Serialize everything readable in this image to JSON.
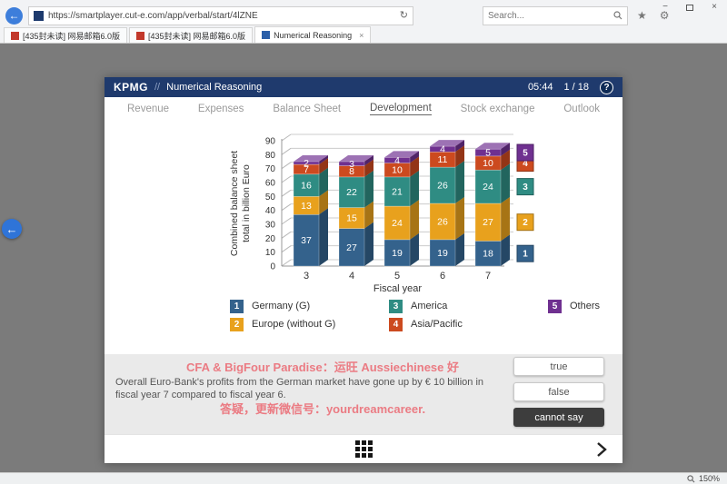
{
  "browser": {
    "url": "https://smartplayer.cut-e.com/app/verbal/start/4lZNE",
    "search_placeholder": "Search...",
    "tabs": [
      {
        "label": "[435封未读] 网易邮箱6.0版",
        "active": false
      },
      {
        "label": "[435封未读] 网易邮箱6.0版",
        "active": false
      },
      {
        "label": "Numerical Reasoning",
        "active": true
      }
    ],
    "status_zoom": "150%"
  },
  "icons": {
    "back": "←",
    "refresh": "↻",
    "star": "★",
    "gear": "⚙",
    "minimize": "−",
    "close": "×",
    "tab_close": "×"
  },
  "app": {
    "brand": "KPMG",
    "divider": "//",
    "title": "Numerical Reasoning",
    "timer": "05:44",
    "progress": "1 / 18",
    "help_label": "?"
  },
  "nav": {
    "items": [
      "Revenue",
      "Expenses",
      "Balance Sheet",
      "Development",
      "Stock exchange",
      "Outlook"
    ],
    "active_index": 3
  },
  "chart_data": {
    "type": "bar",
    "stacked": true,
    "categories": [
      "3",
      "4",
      "5",
      "6",
      "7"
    ],
    "series": [
      {
        "key": "1",
        "name": "Germany (G)",
        "color": "#34628c",
        "values": [
          37,
          27,
          19,
          19,
          18
        ]
      },
      {
        "key": "2",
        "name": "Europe (without G)",
        "color": "#e8a11d",
        "values": [
          13,
          15,
          24,
          26,
          27
        ]
      },
      {
        "key": "3",
        "name": "America",
        "color": "#2f8c83",
        "values": [
          16,
          22,
          21,
          26,
          24
        ]
      },
      {
        "key": "4",
        "name": "Asia/Pacific",
        "color": "#cc4a1f",
        "values": [
          7,
          8,
          10,
          11,
          10
        ]
      },
      {
        "key": "5",
        "name": "Others",
        "color": "#6f3090",
        "values": [
          2,
          3,
          4,
          4,
          5
        ]
      }
    ],
    "xlabel": "Fiscal year",
    "ylabel": "Combined balance sheet\ntotal in billion Euro",
    "ylim": [
      0,
      90
    ],
    "ytick_step": 10,
    "grid": true,
    "legend_position": "bottom"
  },
  "question": {
    "text": "Overall Euro-Bank's profits from the German market have gone up by € 10 billion in fiscal year 7 compared to fiscal year 6.",
    "answers": [
      {
        "label": "true",
        "selected": false
      },
      {
        "label": "false",
        "selected": false
      },
      {
        "label": "cannot say",
        "selected": true
      }
    ]
  },
  "watermark": {
    "line1": "CFA & BigFour Paradise：运旺 Aussiechinese 好",
    "line2": "答疑，更新微信号：yourdreamcareer."
  }
}
